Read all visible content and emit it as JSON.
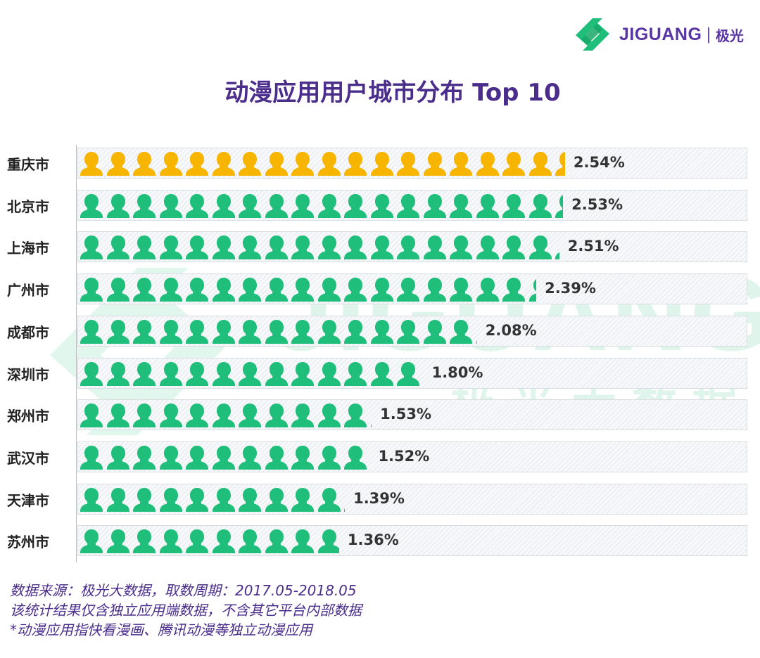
{
  "logo": {
    "brand": "JIGUANG",
    "separator": "|",
    "cn": "极光"
  },
  "watermark": {
    "text_en": "JIGUANG",
    "text_cn": "极光大数据"
  },
  "chart_data": {
    "type": "bar",
    "title": "动漫应用用户城市分布 Top 10",
    "categories": [
      "重庆市",
      "北京市",
      "上海市",
      "广州市",
      "成都市",
      "深圳市",
      "郑州市",
      "武汉市",
      "天津市",
      "苏州市"
    ],
    "values": [
      2.54,
      2.53,
      2.51,
      2.39,
      2.08,
      1.8,
      1.53,
      1.52,
      1.39,
      1.36
    ],
    "labels": [
      "2.54%",
      "2.53%",
      "2.51%",
      "2.39%",
      "2.08%",
      "1.80%",
      "1.53%",
      "1.52%",
      "1.39%",
      "1.36%"
    ],
    "unit": "%",
    "xlabel": "",
    "ylabel": "",
    "colors": {
      "highlight": "#f7b500",
      "normal": "#1fbe7a"
    },
    "highlight_index": 0
  },
  "footnotes": [
    "数据来源：极光大数据，取数周期：2017.05-2018.05",
    "该统计结果仅含独立应用端数据，不含其它平台内部数据",
    "*动漫应用指快看漫画、腾讯动漫等独立动漫应用"
  ]
}
